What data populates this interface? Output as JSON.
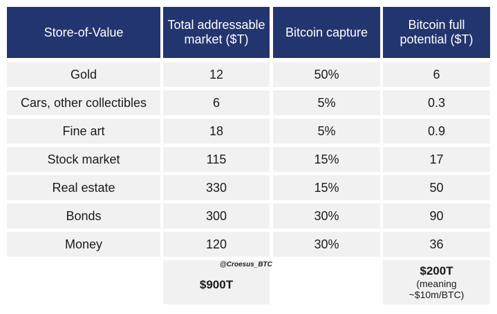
{
  "table": {
    "headers": [
      "Store-of-Value",
      "Total addressable market ($T)",
      "Bitcoin capture",
      "Bitcoin full potential ($T)"
    ],
    "rows": [
      [
        "Gold",
        "12",
        "50%",
        "6"
      ],
      [
        "Cars, other collectibles",
        "6",
        "5%",
        "0.3"
      ],
      [
        "Fine art",
        "18",
        "5%",
        "0.9"
      ],
      [
        "Stock market",
        "115",
        "15%",
        "17"
      ],
      [
        "Real estate",
        "330",
        "15%",
        "50"
      ],
      [
        "Bonds",
        "300",
        "30%",
        "90"
      ],
      [
        "Money",
        "120",
        "30%",
        "36"
      ]
    ],
    "totals": {
      "market_total": "$900T",
      "potential_total": "$200T",
      "potential_note_line1": "(meaning",
      "potential_note_line2": "~$10m/BTC)"
    }
  },
  "watermark": "@Croesus_BTC",
  "colors": {
    "header_bg": "#23356f",
    "header_text": "#ffffff",
    "row_bg": "#f1f1f1"
  }
}
